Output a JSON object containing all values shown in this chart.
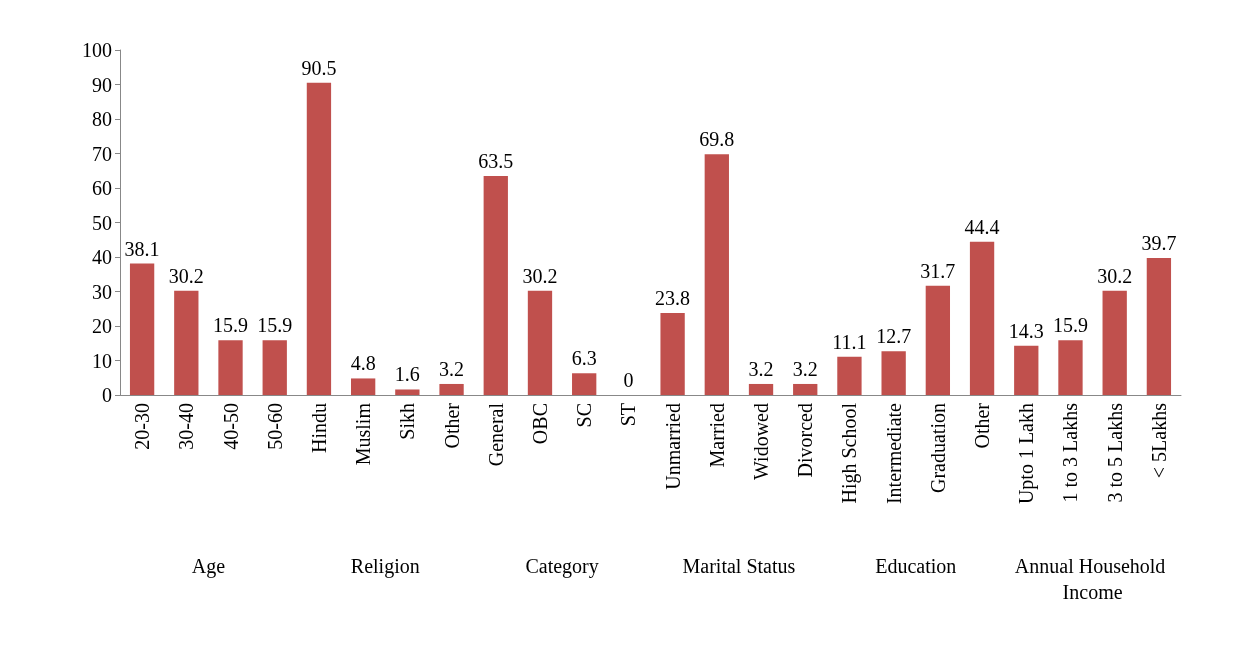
{
  "chart_data": {
    "type": "bar",
    "categories": [
      "20-30",
      "30-40",
      "40-50",
      "50-60",
      "Hindu",
      "Muslim",
      "Sikh",
      "Other",
      "General",
      "OBC",
      "SC",
      "ST",
      "Unmarried",
      "Married",
      "Widowed",
      "Divorced",
      "High School",
      "Intermediate",
      "Graduation",
      "Other",
      "Upto 1 Lakh",
      "1 to 3 Lakhs",
      "3 to 5 Lakhs",
      "< 5Lakhs"
    ],
    "values": [
      38.1,
      30.2,
      15.9,
      15.9,
      90.5,
      4.8,
      1.6,
      3.2,
      63.5,
      30.2,
      6.3,
      0,
      23.8,
      69.8,
      3.2,
      3.2,
      11.1,
      12.7,
      31.7,
      44.4,
      14.3,
      15.9,
      30.2,
      39.7
    ],
    "color": "#c0504d",
    "ylim": [
      0,
      100
    ],
    "yticks": [
      0,
      10,
      20,
      30,
      40,
      50,
      60,
      70,
      80,
      90,
      100
    ],
    "data_labels": true,
    "grid": false,
    "annotations": [
      "Age",
      "Religion",
      "Category",
      "Marital Status",
      "Education",
      "Annual Household Income"
    ]
  }
}
